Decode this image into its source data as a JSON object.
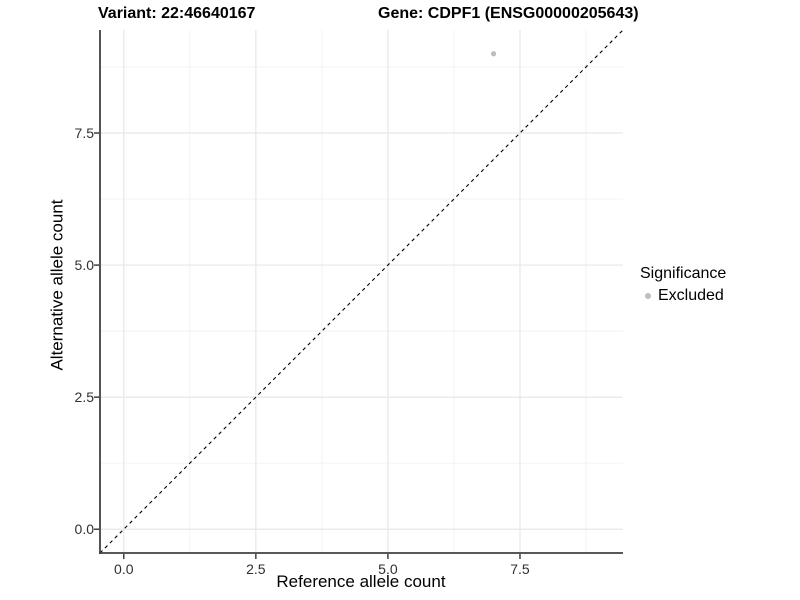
{
  "legend": {
    "title": "Significance",
    "items": [
      {
        "label": "Excluded",
        "color": "#bdbdbd"
      }
    ]
  },
  "chart_data": {
    "type": "scatter",
    "title_left": "Variant: 22:46640167",
    "title_right": "Gene: CDPF1 (ENSG00000205643)",
    "xlabel": "Reference allele count",
    "ylabel": "Alternative allele count",
    "xlim": [
      -0.45,
      9.45
    ],
    "ylim": [
      -0.45,
      9.45
    ],
    "x_ticks": [
      0,
      2.5,
      5,
      7.5
    ],
    "x_tick_labels": [
      "0.0",
      "2.5",
      "5.0",
      "7.5"
    ],
    "y_ticks": [
      0,
      2.5,
      5,
      7.5
    ],
    "y_tick_labels": [
      "0.0",
      "2.5",
      "5.0",
      "7.5"
    ],
    "x_minor_ticks": [
      1.25,
      3.75,
      6.25,
      8.75
    ],
    "y_minor_ticks": [
      1.25,
      3.75,
      6.25,
      8.75
    ],
    "grid": true,
    "legend_position": "right",
    "series": [
      {
        "name": "Excluded",
        "color": "#bdbdbd",
        "points": [
          {
            "x": 7,
            "y": 9
          }
        ]
      }
    ],
    "reference_line": {
      "kind": "identity",
      "slope": 1,
      "intercept": 0,
      "style": "dashed",
      "color": "#000000"
    },
    "colors": {
      "grid_major": "#e7e7e7",
      "grid_minor": "#f2f2f2",
      "axis_line": "#404040",
      "tick_mark": "#333333",
      "tick_label": "#303030"
    }
  }
}
